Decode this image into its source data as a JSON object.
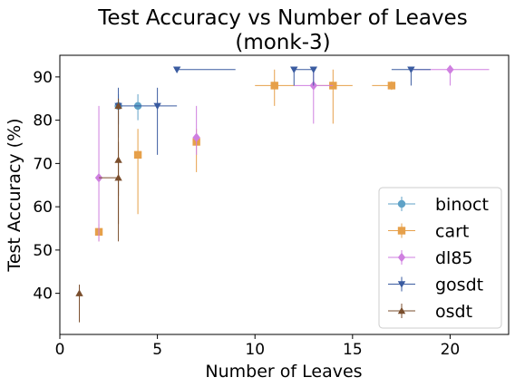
{
  "chart_data": {
    "type": "scatter",
    "title": "Test Accuracy vs Number of Leaves",
    "subtitle": "(monk-3)",
    "xlabel": "Number of Leaves",
    "ylabel": "Test Accuracy (%)",
    "xlim": [
      0,
      23
    ],
    "ylim": [
      30.5,
      95
    ],
    "xticks": [
      0,
      5,
      10,
      15,
      20
    ],
    "yticks": [
      40,
      50,
      60,
      70,
      80,
      90
    ],
    "grid": false,
    "legend_position": "lower-right",
    "series": [
      {
        "name": "binoct",
        "color": "#5fa2c7",
        "marker": "circle",
        "points": [
          {
            "x": 3,
            "y": 83.3,
            "ylo": 76.0,
            "yhi": 86.0
          },
          {
            "x": 4,
            "y": 83.3,
            "ylo": 80.0,
            "yhi": 86.0
          }
        ]
      },
      {
        "name": "cart",
        "color": "#e6a04a",
        "marker": "square",
        "points": [
          {
            "x": 2,
            "y": 54.2,
            "ylo": 52.0,
            "yhi": 56.0
          },
          {
            "x": 4,
            "y": 72.0,
            "ylo": 58.3,
            "yhi": 78.0
          },
          {
            "x": 7,
            "y": 75.0,
            "ylo": 68.0,
            "yhi": 78.0
          },
          {
            "x": 11,
            "y": 88.0,
            "ylo": 83.3,
            "yhi": 91.7,
            "xlo": 10,
            "xhi": 12
          },
          {
            "x": 14,
            "y": 88.0,
            "ylo": 79.2,
            "yhi": 91.7,
            "xlo": 13,
            "xhi": 15
          },
          {
            "x": 17,
            "y": 88.0,
            "ylo": 87.0,
            "yhi": 89.0,
            "xlo": 16,
            "xhi": 17
          }
        ]
      },
      {
        "name": "dl85",
        "color": "#cf7fe0",
        "marker": "diamond",
        "points": [
          {
            "x": 2,
            "y": 66.7,
            "ylo": 52.0,
            "yhi": 83.3
          },
          {
            "x": 7,
            "y": 76.0,
            "ylo": 72.0,
            "yhi": 83.3
          },
          {
            "x": 13,
            "y": 88.0,
            "ylo": 79.2,
            "yhi": 91.7,
            "xlo": 12,
            "xhi": 14
          },
          {
            "x": 20,
            "y": 91.7,
            "ylo": 88.0,
            "yhi": 92.5,
            "xlo": 18,
            "xhi": 22
          }
        ]
      },
      {
        "name": "gosdt",
        "color": "#3a5ba0",
        "marker": "triangle-down",
        "points": [
          {
            "x": 3,
            "y": 83.3,
            "ylo": 79.0,
            "yhi": 87.5
          },
          {
            "x": 5,
            "y": 83.3,
            "ylo": 72.0,
            "yhi": 87.5,
            "xlo": 3,
            "xhi": 6
          },
          {
            "x": 6,
            "y": 91.7,
            "ylo": 91.0,
            "yhi": 92.0,
            "xlo": 6,
            "xhi": 9
          },
          {
            "x": 12,
            "y": 91.7,
            "ylo": 88.0,
            "yhi": 92.0
          },
          {
            "x": 13,
            "y": 91.7,
            "ylo": 88.0,
            "yhi": 92.0,
            "xlo": 12,
            "xhi": 13
          },
          {
            "x": 18,
            "y": 91.7,
            "ylo": 88.0,
            "yhi": 92.0,
            "xlo": 17,
            "xhi": 19
          }
        ]
      },
      {
        "name": "osdt",
        "color": "#7a4e2d",
        "marker": "triangle-up",
        "points": [
          {
            "x": 1,
            "y": 40.0,
            "ylo": 33.3,
            "yhi": 42.0
          },
          {
            "x": 3,
            "y": 66.7,
            "ylo": 52.0,
            "yhi": 70.0,
            "xlo": 2,
            "xhi": 3
          },
          {
            "x": 3,
            "y": 70.8,
            "ylo": 56.0,
            "yhi": 75.0
          },
          {
            "x": 3,
            "y": 83.3,
            "ylo": 62.5,
            "yhi": 85.0
          }
        ]
      }
    ]
  }
}
